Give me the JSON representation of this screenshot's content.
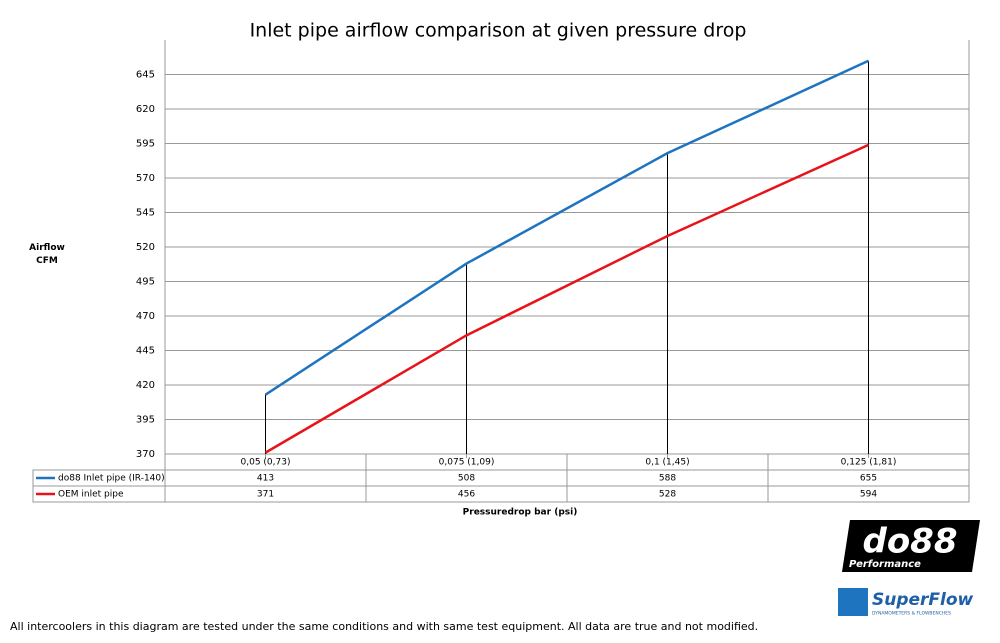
{
  "chart_data": {
    "type": "line",
    "title": "Inlet pipe airflow comparison at given pressure drop",
    "y_label": "Airflow CFM",
    "x_label": "Pressuredrop bar (psi)",
    "categories": [
      "0,05 (0,73)",
      "0,075 (1,09)",
      "0,1 (1,45)",
      "0,125 (1,81)"
    ],
    "series": [
      {
        "name": "do88 Inlet pipe (IR-140)",
        "color": "#1f74c0",
        "values": [
          413,
          508,
          588,
          655
        ]
      },
      {
        "name": "OEM inlet pipe",
        "color": "#e8131a",
        "values": [
          371,
          456,
          528,
          594
        ]
      }
    ],
    "ylim": [
      370,
      670
    ],
    "yticks": [
      370,
      395,
      420,
      445,
      470,
      495,
      520,
      545,
      570,
      595,
      620,
      645
    ],
    "grid": true
  },
  "footer": "All intercoolers in this diagram are tested under the same conditions and with same test equipment. All data are true and not modified.",
  "logos": {
    "do88": "do88",
    "do88_sub": "Performance",
    "superflow": "SuperFlow",
    "superflow_sub": "DYNAMOMETERS & FLOWBENCHES"
  }
}
